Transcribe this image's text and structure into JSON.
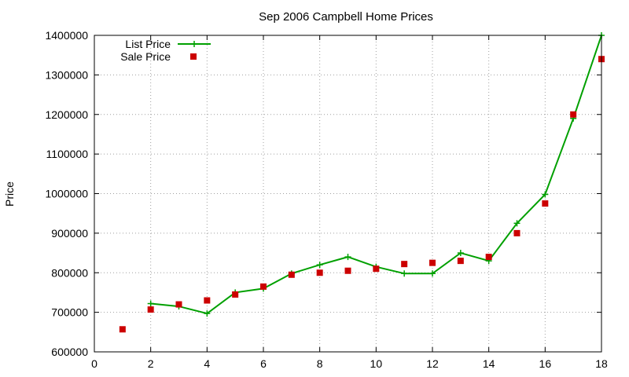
{
  "chart_data": {
    "type": "line",
    "title": "Sep 2006 Campbell Home Prices",
    "xlabel": "",
    "ylabel": "Price",
    "xlim": [
      0,
      18
    ],
    "ylim": [
      600000,
      1400000
    ],
    "x_ticks": [
      "0",
      "2",
      "4",
      "6",
      "8",
      "10",
      "12",
      "14",
      "16",
      "18"
    ],
    "y_ticks": [
      "600000",
      "700000",
      "800000",
      "900000",
      "1000000",
      "1100000",
      "1200000",
      "1300000",
      "1400000"
    ],
    "grid": true,
    "legend_position": "top-left",
    "x": [
      1,
      2,
      3,
      4,
      5,
      6,
      7,
      8,
      9,
      10,
      11,
      12,
      13,
      14,
      15,
      16,
      17,
      18
    ],
    "series": [
      {
        "name": "List Price",
        "style": "line-with-plus-markers",
        "color": "#00a000",
        "x": [
          2,
          3,
          4,
          5,
          6,
          7,
          8,
          9,
          10,
          11,
          12,
          13,
          14,
          15,
          16,
          17,
          18
        ],
        "values": [
          722000,
          715000,
          697000,
          750000,
          760000,
          798000,
          820000,
          840000,
          815000,
          798000,
          798000,
          850000,
          830000,
          925000,
          998000,
          1190000,
          1400000
        ]
      },
      {
        "name": "Sale Price",
        "style": "square-markers",
        "color": "#cc0000",
        "x": [
          1,
          2,
          3,
          4,
          5,
          6,
          7,
          8,
          9,
          10,
          11,
          12,
          13,
          14,
          15,
          16,
          17,
          18
        ],
        "values": [
          657000,
          707000,
          720000,
          730000,
          745000,
          765000,
          795000,
          800000,
          805000,
          810000,
          822000,
          825000,
          830000,
          840000,
          900000,
          975000,
          1200000,
          1340000
        ]
      }
    ]
  }
}
